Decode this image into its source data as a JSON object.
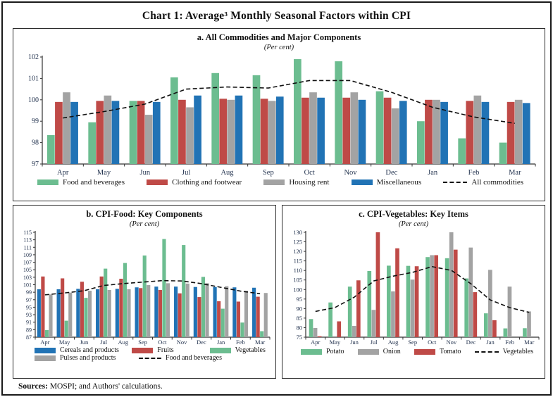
{
  "page": {
    "title": "Chart 1: Average³ Monthly Seasonal Factors within CPI",
    "sources_label": "Sources:",
    "sources_text": " MOSPI; and Authors' calculations."
  },
  "colors": {
    "green": "#6cbd90",
    "red": "#bf4a47",
    "gray": "#a3a3a3",
    "blue": "#2173b5",
    "line": "#111111"
  },
  "chart_data": [
    {
      "id": "a",
      "type": "bar",
      "title": "a. All Commodities and Major Components",
      "subtitle": "(Per cent)",
      "categories": [
        "Apr",
        "May",
        "Jun",
        "Jul",
        "Aug",
        "Sep",
        "Oct",
        "Nov",
        "Dec",
        "Jan",
        "Feb",
        "Mar"
      ],
      "ylim": [
        97,
        102
      ],
      "ytick_step": 1,
      "grid": false,
      "legend_position": "bottom",
      "series": [
        {
          "name": "Food and beverages",
          "color": "green",
          "values": [
            98.35,
            98.95,
            99.95,
            101.05,
            101.25,
            101.15,
            101.9,
            101.8,
            100.4,
            99.0,
            98.2,
            98.0
          ]
        },
        {
          "name": "Clothing and footwear",
          "color": "red",
          "values": [
            99.9,
            99.95,
            99.95,
            100.0,
            100.05,
            100.05,
            100.1,
            100.1,
            100.1,
            100.0,
            99.95,
            99.9
          ]
        },
        {
          "name": "Housing rent",
          "color": "gray",
          "values": [
            100.35,
            100.2,
            99.3,
            99.65,
            100.0,
            99.95,
            100.35,
            100.35,
            99.6,
            100.0,
            100.2,
            100.0
          ]
        },
        {
          "name": "Miscellaneous",
          "color": "blue",
          "values": [
            99.9,
            99.95,
            99.9,
            100.2,
            100.2,
            100.15,
            100.1,
            100.0,
            99.95,
            99.9,
            99.9,
            99.85
          ]
        }
      ],
      "line_series": {
        "name": "All commodities",
        "style": "dashed",
        "values": [
          99.15,
          99.45,
          99.8,
          100.5,
          100.6,
          100.55,
          100.9,
          100.9,
          100.35,
          99.65,
          99.2,
          98.9
        ]
      },
      "legend_rows": [
        [
          {
            "label": "Food and beverages",
            "swatch": "green"
          },
          {
            "label": "Clothing and footwear",
            "swatch": "red"
          },
          {
            "label": "Housing rent",
            "swatch": "gray"
          },
          {
            "label": "Miscellaneous",
            "swatch": "blue"
          },
          {
            "label": "All commodities",
            "swatch": "dashed"
          }
        ]
      ]
    },
    {
      "id": "b",
      "type": "bar",
      "title": "b. CPI-Food: Key Components",
      "subtitle": "(Per cent)",
      "categories": [
        "Apr",
        "May",
        "Jun",
        "Jul",
        "Aug",
        "Sep",
        "Oct",
        "Nov",
        "Dec",
        "Jan",
        "Feb",
        "Mar"
      ],
      "ylim": [
        87,
        115
      ],
      "ytick_step": 2,
      "grid": false,
      "legend_position": "bottom",
      "series": [
        {
          "name": "Cereals and products",
          "color": "blue",
          "values": [
            99.8,
            99.8,
            99.9,
            99.8,
            99.9,
            100.3,
            100.5,
            100.5,
            100.4,
            100.4,
            100.3,
            100.2
          ]
        },
        {
          "name": "Fruits",
          "color": "red",
          "values": [
            103.2,
            102.7,
            101.8,
            103.2,
            102.6,
            100.1,
            99.6,
            98.7,
            97.7,
            96.6,
            96.5,
            97.8
          ]
        },
        {
          "name": "Vegetables",
          "color": "green",
          "values": [
            88.9,
            91.4,
            97.5,
            105.3,
            106.8,
            108.8,
            113.2,
            111.6,
            103.1,
            94.6,
            90.9,
            88.6
          ]
        },
        {
          "name": "Pulses and products",
          "color": "gray",
          "values": [
            98.4,
            98.9,
            99.4,
            99.6,
            99.8,
            100.9,
            101.4,
            101.3,
            101.4,
            100.6,
            99.4,
            98.8
          ]
        }
      ],
      "line_series": {
        "name": "Food and beverages",
        "style": "dashed",
        "values": [
          98.3,
          98.8,
          99.4,
          100.8,
          101.3,
          101.7,
          102.1,
          102.0,
          101.3,
          100.3,
          99.3,
          98.6
        ]
      },
      "legend_rows": [
        [
          {
            "label": "Cereals and products",
            "swatch": "blue"
          },
          {
            "label": "Fruits",
            "swatch": "red"
          },
          {
            "label": "Vegetables",
            "swatch": "green"
          }
        ],
        [
          {
            "label": "Pulses and products",
            "swatch": "gray"
          },
          {
            "label": "Food and beverages",
            "swatch": "dashed"
          }
        ]
      ]
    },
    {
      "id": "c",
      "type": "bar",
      "title": "c. CPI-Vegetables: Key Items",
      "subtitle": "(Per cent)",
      "categories": [
        "Apr",
        "May",
        "Jun",
        "Jul",
        "Aug",
        "Sep",
        "Oct",
        "Nov",
        "Dec",
        "Jan",
        "Feb",
        "Mar"
      ],
      "ylim": [
        75,
        130
      ],
      "ytick_step": 5,
      "grid": false,
      "legend_position": "bottom",
      "series": [
        {
          "name": "Potato",
          "color": "green",
          "values": [
            84.5,
            93.2,
            101.5,
            109.7,
            112.5,
            112.4,
            117.0,
            116.4,
            105.8,
            87.5,
            79.6,
            79.7
          ]
        },
        {
          "name": "Onion",
          "color": "gray",
          "values": [
            79.8,
            75.5,
            80.9,
            89.3,
            99.0,
            105.2,
            118.0,
            130.0,
            122.0,
            110.3,
            101.5,
            88.5
          ]
        },
        {
          "name": "Tomato",
          "color": "red",
          "values": [
            75.5,
            83.3,
            104.8,
            130.0,
            121.6,
            112.2,
            118.0,
            120.9,
            98.6,
            83.9,
            null,
            null
          ]
        }
      ],
      "line_series": {
        "name": "Vegetables",
        "style": "dashed",
        "values": [
          88.5,
          90.5,
          96.0,
          104.5,
          107.0,
          109.0,
          112.0,
          110.0,
          103.0,
          94.5,
          90.5,
          88.0
        ]
      },
      "legend_rows": [
        [
          {
            "label": "Potato",
            "swatch": "green"
          },
          {
            "label": "Onion",
            "swatch": "gray"
          },
          {
            "label": "Tomato",
            "swatch": "red"
          },
          {
            "label": "Vegetables",
            "swatch": "dashed"
          }
        ]
      ]
    }
  ]
}
